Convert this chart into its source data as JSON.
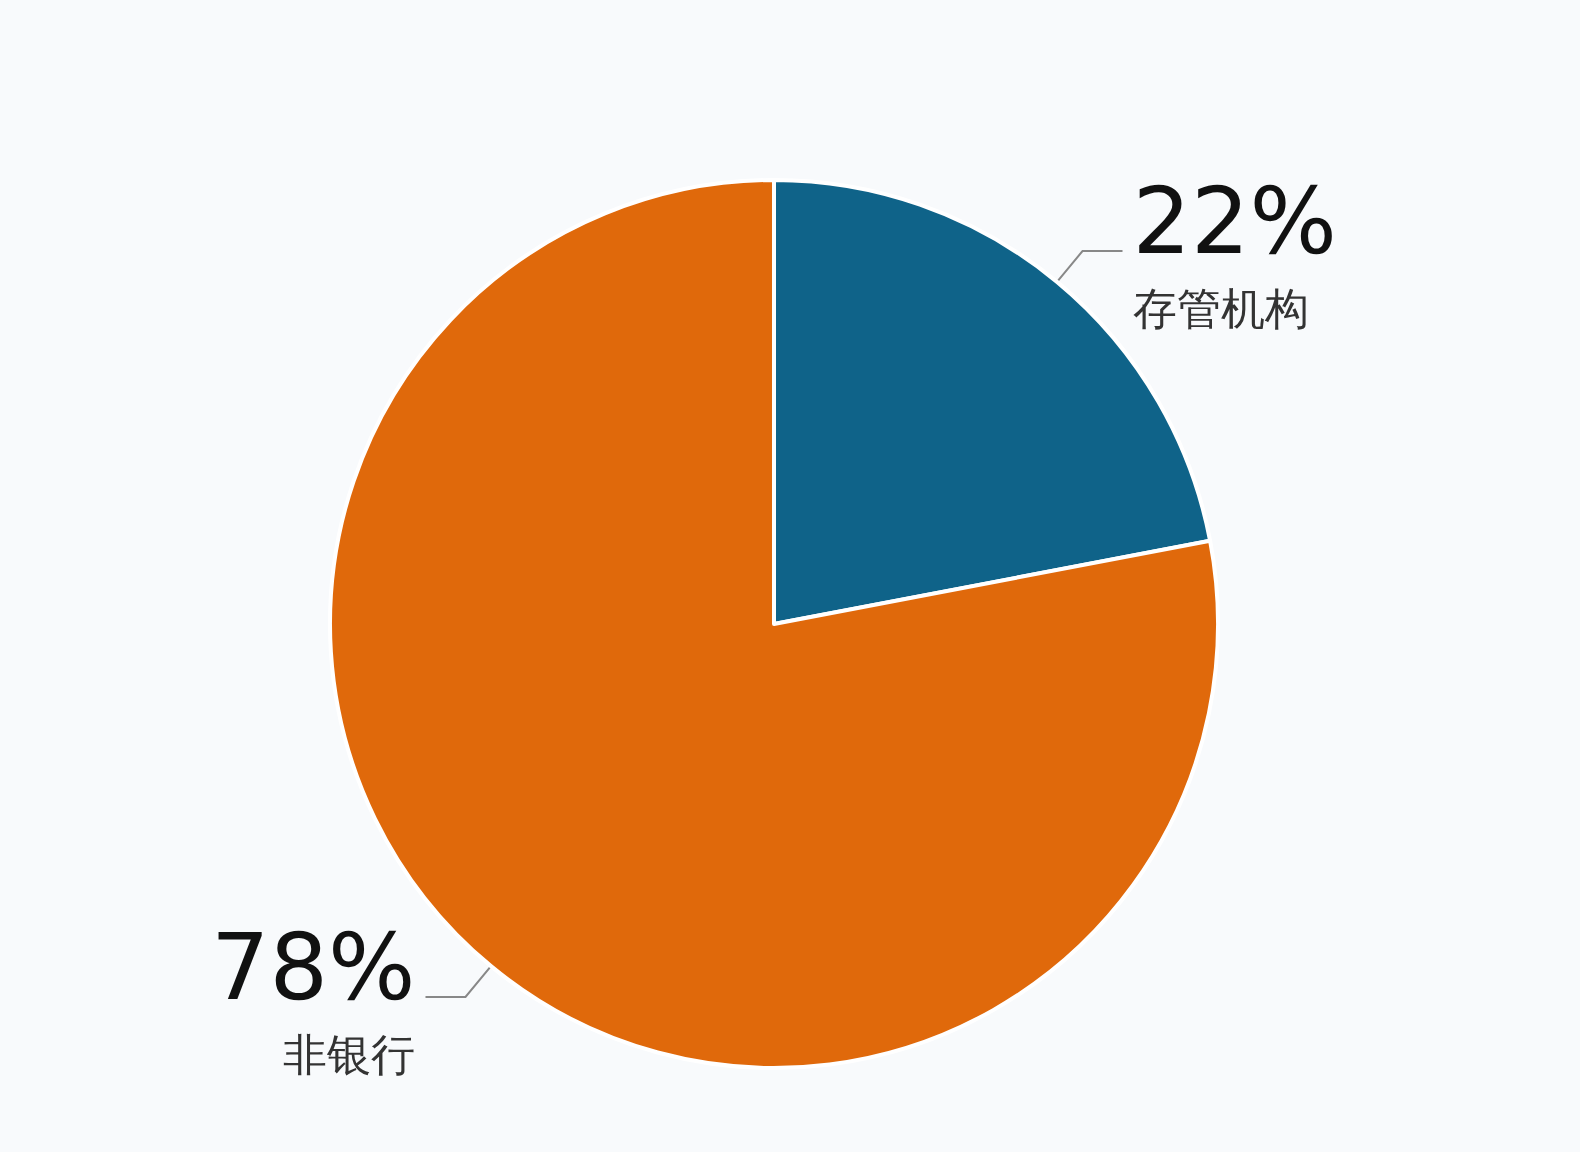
{
  "chart_data": {
    "type": "pie",
    "categories": [
      "存管机构",
      "非银行"
    ],
    "values": [
      22,
      78
    ],
    "colors": [
      "#0f6389",
      "#e0690b"
    ],
    "value_labels": [
      "22%",
      "78%"
    ],
    "legend": false
  }
}
